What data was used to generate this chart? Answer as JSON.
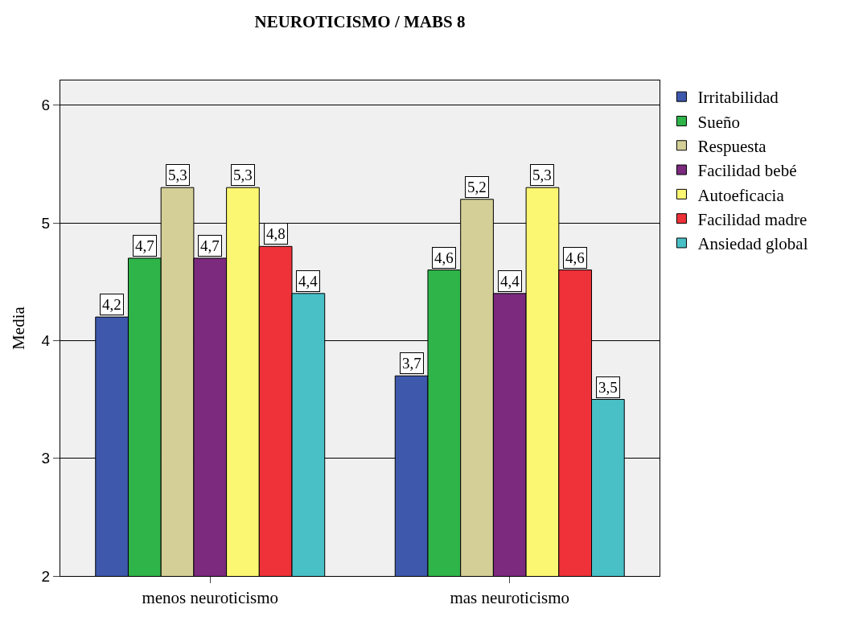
{
  "chart_data": {
    "type": "bar",
    "title": "NEUROTICISMO / MABS 8",
    "ylabel": "Media",
    "categories": [
      "menos neuroticismo",
      "mas neuroticismo"
    ],
    "series": [
      {
        "name": "Irritabilidad",
        "color": "#3e58ac",
        "values": [
          4.2,
          3.7
        ],
        "value_labels": [
          "4,2",
          "3,7"
        ]
      },
      {
        "name": "Sueño",
        "color": "#2fb44a",
        "values": [
          4.7,
          4.6
        ],
        "value_labels": [
          "4,7",
          "4,6"
        ]
      },
      {
        "name": "Respuesta",
        "color": "#d4cf96",
        "values": [
          5.3,
          5.2
        ],
        "value_labels": [
          "5,3",
          "5,2"
        ]
      },
      {
        "name": "Facilidad bebé",
        "color": "#7b2a7e",
        "values": [
          4.7,
          4.4
        ],
        "value_labels": [
          "4,7",
          "4,4"
        ]
      },
      {
        "name": "Autoeficacia",
        "color": "#fbf772",
        "values": [
          5.3,
          5.3
        ],
        "value_labels": [
          "5,3",
          "5,3"
        ]
      },
      {
        "name": "Facilidad madre",
        "color": "#ef3139",
        "values": [
          4.8,
          4.6
        ],
        "value_labels": [
          "4,8",
          "4,6"
        ]
      },
      {
        "name": "Ansiedad global",
        "color": "#48c0c6",
        "values": [
          4.4,
          3.5
        ],
        "value_labels": [
          "4,4",
          "3,5"
        ]
      }
    ],
    "ylim": [
      2,
      6.21
    ],
    "yticks": [
      2,
      3,
      4,
      5,
      6
    ],
    "grid": "y",
    "legend": "top right"
  }
}
